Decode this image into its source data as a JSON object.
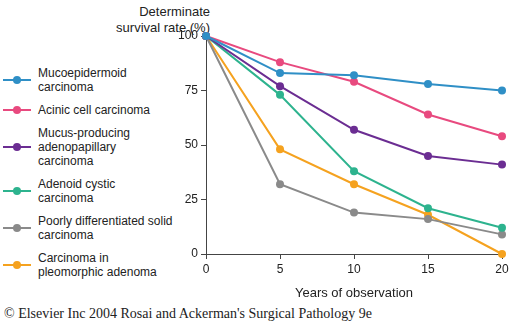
{
  "chart_data": {
    "type": "line",
    "x_label": "Years of observation",
    "y_label": "Determinate survival rate (%)",
    "annotations": [
      "© Elsevier Inc 2004 Rosai and Ackerman's Surgical Pathology 9e"
    ],
    "x": [
      0,
      5,
      10,
      15,
      20
    ],
    "series": [
      {
        "name": "Mucoepidermoid carcinoma",
        "color": "#2f8fc6",
        "values": [
          100,
          83,
          82,
          78,
          75
        ]
      },
      {
        "name": "Acinic cell carcinoma",
        "color": "#e84a7f",
        "values": [
          100,
          88,
          79,
          64,
          54
        ]
      },
      {
        "name": "Mucus-producing adenopapillary carcinoma",
        "color": "#6b2d92",
        "values": [
          100,
          77,
          57,
          45,
          41
        ]
      },
      {
        "name": "Adenoid cystic carcinoma",
        "color": "#2db38e",
        "values": [
          100,
          73,
          38,
          21,
          12
        ]
      },
      {
        "name": "Poorly differentiated solid carcinoma",
        "color": "#8a8a8a",
        "values": [
          100,
          32,
          19,
          16,
          9
        ]
      },
      {
        "name": "Carcinoma in pleomorphic adenoma",
        "color": "#f5a21f",
        "values": [
          100,
          48,
          32,
          18,
          0
        ]
      }
    ],
    "xlim": [
      0,
      20
    ],
    "xticks": [
      0,
      5,
      10,
      15,
      20
    ],
    "ylim": [
      0,
      100
    ],
    "yticks": [
      0,
      25,
      50,
      75,
      100
    ],
    "grid": false,
    "marker": "circle",
    "line_style": "solid"
  }
}
